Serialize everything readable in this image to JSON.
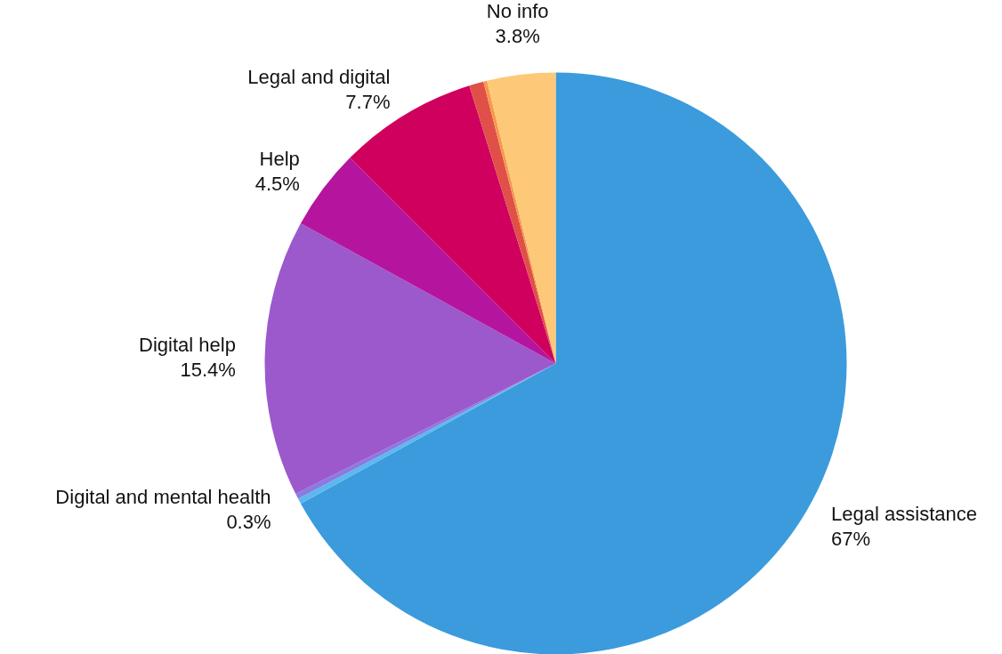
{
  "chart_data": {
    "type": "pie",
    "categories": [
      "Legal assistance",
      null,
      "Digital and mental health",
      "Digital help",
      "Help",
      "Legal and digital",
      null,
      null,
      "No info"
    ],
    "values": [
      67,
      0.3,
      0.3,
      15.4,
      4.5,
      7.7,
      0.8,
      0.2,
      3.8
    ],
    "colors": [
      "#3b9bdc",
      "#5bb8f0",
      "#8a7be0",
      "#9b59cc",
      "#b5149e",
      "#d0005e",
      "#e05048",
      "#f59a4a",
      "#fdc978"
    ],
    "value_labels": [
      "67%",
      null,
      "0.3%",
      "15.4%",
      "4.5%",
      "7.7%",
      null,
      null,
      "3.8%"
    ],
    "legend": false
  }
}
